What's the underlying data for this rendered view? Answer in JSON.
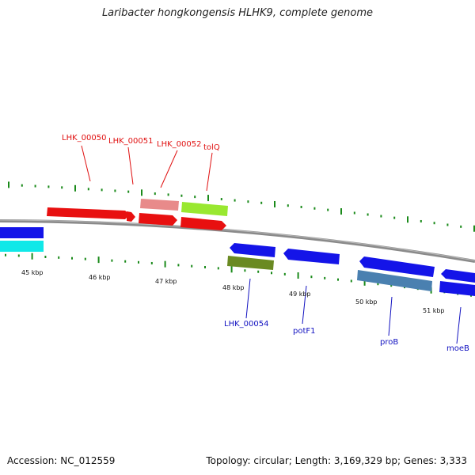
{
  "title": "Laribacter hongkongensis HLHK9, complete genome",
  "footer": {
    "accession": "Accession: NC_012559",
    "summary": "Topology: circular; Length: 3,169,329 bp; Genes: 3,333"
  },
  "colors": {
    "backbone": "#8a8a8a",
    "tick": "#1a8a1a",
    "label_top": "#e01010",
    "label_bottom": "#1010c0"
  },
  "scale": {
    "unit": "kbp",
    "ticks": [
      "45 kbp",
      "46 kbp",
      "47 kbp",
      "48 kbp",
      "49 kbp",
      "50 kbp",
      "51 kbp"
    ]
  },
  "genes_top": [
    {
      "name": "LHK_00050",
      "color": "#e81010"
    },
    {
      "name": "LHK_00051",
      "color": "#e81010"
    },
    {
      "name": "LHK_00052",
      "color": "#e88a8a"
    },
    {
      "name": "tolQ",
      "color": "#99e830"
    }
  ],
  "genes_bottom": [
    {
      "name": "LHK_00054",
      "color": "#6a8a22"
    },
    {
      "name": "potF1",
      "color": "#1414e8"
    },
    {
      "name": "proB",
      "color": "#4a80b0"
    },
    {
      "name": "moeB",
      "color": "#1414e8"
    }
  ]
}
